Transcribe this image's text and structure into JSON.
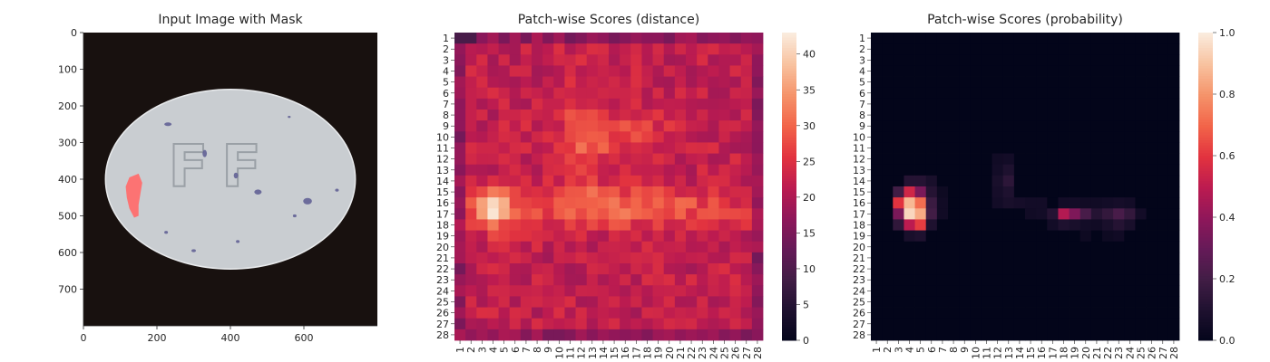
{
  "chart_data": [
    {
      "type": "image",
      "title": "Input Image with Mask",
      "xlim": [
        0,
        800
      ],
      "ylim": [
        800,
        0
      ],
      "x_ticks": [
        0,
        200,
        400,
        600
      ],
      "y_ticks": [
        0,
        100,
        200,
        300,
        400,
        500,
        600,
        700
      ],
      "object": {
        "shape": "ellipse",
        "center": [
          400,
          400
        ],
        "radii": [
          340,
          245
        ],
        "marks": [
          {
            "text": "F",
            "x": 285,
            "y": 420
          },
          {
            "text": "F",
            "x": 430,
            "y": 420
          }
        ]
      },
      "mask": {
        "color": "#ff6e6e",
        "polygon": [
          [
            125,
            395
          ],
          [
            150,
            385
          ],
          [
            160,
            410
          ],
          [
            155,
            440
          ],
          [
            150,
            470
          ],
          [
            150,
            500
          ],
          [
            138,
            505
          ],
          [
            125,
            480
          ],
          [
            118,
            450
          ],
          [
            115,
            420
          ]
        ]
      },
      "colors": {
        "background": "#18110f",
        "object": "#c9cdd1",
        "stain": "#5c5a92"
      }
    },
    {
      "type": "heatmap",
      "title": "Patch-wise Scores (distance)",
      "x_labels": [
        "1",
        "2",
        "3",
        "4",
        "5",
        "6",
        "7",
        "8",
        "9",
        "10",
        "11",
        "12",
        "13",
        "14",
        "15",
        "16",
        "17",
        "18",
        "19",
        "20",
        "21",
        "22",
        "23",
        "24",
        "25",
        "26",
        "27",
        "28"
      ],
      "y_labels": [
        "1",
        "2",
        "3",
        "4",
        "5",
        "6",
        "7",
        "8",
        "9",
        "10",
        "11",
        "12",
        "13",
        "14",
        "15",
        "16",
        "17",
        "18",
        "19",
        "20",
        "21",
        "22",
        "23",
        "24",
        "25",
        "26",
        "27",
        "28"
      ],
      "colormap": "rocket",
      "vmin": 0,
      "vmax": 43,
      "colorbar_ticks": [
        0,
        5,
        10,
        15,
        20,
        25,
        30,
        35,
        40
      ],
      "field": {
        "base": 22,
        "border": -8,
        "hotspots": [
          {
            "row": 16.5,
            "col": 4,
            "sr": 1.3,
            "sc": 1.1,
            "amp": 20
          },
          {
            "row": 16.5,
            "col": 16,
            "sr": 1.2,
            "sc": 7,
            "amp": 9
          },
          {
            "row": 11,
            "col": 12.5,
            "sr": 3.5,
            "sc": 1.2,
            "amp": 6
          },
          {
            "row": 9.5,
            "col": 15,
            "sr": 1.5,
            "sc": 4,
            "amp": 5
          }
        ]
      }
    },
    {
      "type": "heatmap",
      "title": "Patch-wise Scores (probability)",
      "x_labels": [
        "1",
        "2",
        "3",
        "4",
        "5",
        "6",
        "7",
        "8",
        "9",
        "10",
        "11",
        "12",
        "13",
        "14",
        "15",
        "16",
        "17",
        "18",
        "19",
        "20",
        "21",
        "22",
        "23",
        "24",
        "25",
        "26",
        "27",
        "28"
      ],
      "y_labels": [
        "1",
        "2",
        "3",
        "4",
        "5",
        "6",
        "7",
        "8",
        "9",
        "10",
        "11",
        "12",
        "13",
        "14",
        "15",
        "16",
        "17",
        "18",
        "19",
        "20",
        "21",
        "22",
        "23",
        "24",
        "25",
        "26",
        "27",
        "28"
      ],
      "colormap": "rocket",
      "vmin": 0.0,
      "vmax": 1.0,
      "colorbar_ticks": [
        0.0,
        0.2,
        0.4,
        0.6,
        0.8,
        1.0
      ],
      "cells": [
        {
          "row": 14,
          "col": 4,
          "v": 0.12
        },
        {
          "row": 14,
          "col": 5,
          "v": 0.12
        },
        {
          "row": 14,
          "col": 6,
          "v": 0.08
        },
        {
          "row": 15,
          "col": 3,
          "v": 0.2
        },
        {
          "row": 15,
          "col": 4,
          "v": 0.55
        },
        {
          "row": 15,
          "col": 5,
          "v": 0.35
        },
        {
          "row": 15,
          "col": 6,
          "v": 0.12
        },
        {
          "row": 16,
          "col": 3,
          "v": 0.6
        },
        {
          "row": 16,
          "col": 4,
          "v": 0.88
        },
        {
          "row": 16,
          "col": 5,
          "v": 0.72
        },
        {
          "row": 16,
          "col": 6,
          "v": 0.18
        },
        {
          "row": 17,
          "col": 3,
          "v": 0.35
        },
        {
          "row": 17,
          "col": 4,
          "v": 0.95
        },
        {
          "row": 17,
          "col": 5,
          "v": 0.85
        },
        {
          "row": 17,
          "col": 6,
          "v": 0.2
        },
        {
          "row": 18,
          "col": 3,
          "v": 0.15
        },
        {
          "row": 18,
          "col": 4,
          "v": 0.5
        },
        {
          "row": 18,
          "col": 5,
          "v": 0.62
        },
        {
          "row": 18,
          "col": 6,
          "v": 0.1
        },
        {
          "row": 19,
          "col": 4,
          "v": 0.08
        },
        {
          "row": 19,
          "col": 5,
          "v": 0.1
        },
        {
          "row": 15,
          "col": 7,
          "v": 0.04
        },
        {
          "row": 16,
          "col": 7,
          "v": 0.05
        },
        {
          "row": 17,
          "col": 7,
          "v": 0.05
        },
        {
          "row": 12,
          "col": 12,
          "v": 0.05
        },
        {
          "row": 12,
          "col": 13,
          "v": 0.06
        },
        {
          "row": 13,
          "col": 12,
          "v": 0.06
        },
        {
          "row": 13,
          "col": 13,
          "v": 0.1
        },
        {
          "row": 14,
          "col": 12,
          "v": 0.08
        },
        {
          "row": 14,
          "col": 13,
          "v": 0.14
        },
        {
          "row": 15,
          "col": 12,
          "v": 0.07
        },
        {
          "row": 15,
          "col": 13,
          "v": 0.1
        },
        {
          "row": 16,
          "col": 12,
          "v": 0.06
        },
        {
          "row": 16,
          "col": 13,
          "v": 0.08
        },
        {
          "row": 16,
          "col": 14,
          "v": 0.07
        },
        {
          "row": 16,
          "col": 15,
          "v": 0.06
        },
        {
          "row": 16,
          "col": 16,
          "v": 0.06
        },
        {
          "row": 17,
          "col": 15,
          "v": 0.05
        },
        {
          "row": 17,
          "col": 16,
          "v": 0.06
        },
        {
          "row": 17,
          "col": 17,
          "v": 0.12
        },
        {
          "row": 17,
          "col": 18,
          "v": 0.48
        },
        {
          "row": 17,
          "col": 19,
          "v": 0.36
        },
        {
          "row": 17,
          "col": 20,
          "v": 0.22
        },
        {
          "row": 17,
          "col": 21,
          "v": 0.12
        },
        {
          "row": 17,
          "col": 22,
          "v": 0.16
        },
        {
          "row": 17,
          "col": 23,
          "v": 0.22
        },
        {
          "row": 17,
          "col": 24,
          "v": 0.16
        },
        {
          "row": 17,
          "col": 25,
          "v": 0.06
        },
        {
          "row": 16,
          "col": 18,
          "v": 0.06
        },
        {
          "row": 16,
          "col": 19,
          "v": 0.06
        },
        {
          "row": 16,
          "col": 20,
          "v": 0.05
        },
        {
          "row": 16,
          "col": 21,
          "v": 0.05
        },
        {
          "row": 16,
          "col": 22,
          "v": 0.06
        },
        {
          "row": 16,
          "col": 23,
          "v": 0.07
        },
        {
          "row": 16,
          "col": 24,
          "v": 0.06
        },
        {
          "row": 18,
          "col": 17,
          "v": 0.06
        },
        {
          "row": 18,
          "col": 18,
          "v": 0.1
        },
        {
          "row": 18,
          "col": 19,
          "v": 0.08
        },
        {
          "row": 18,
          "col": 20,
          "v": 0.06
        },
        {
          "row": 18,
          "col": 21,
          "v": 0.05
        },
        {
          "row": 18,
          "col": 22,
          "v": 0.08
        },
        {
          "row": 18,
          "col": 23,
          "v": 0.12
        },
        {
          "row": 18,
          "col": 24,
          "v": 0.08
        },
        {
          "row": 19,
          "col": 20,
          "v": 0.04
        },
        {
          "row": 19,
          "col": 22,
          "v": 0.04
        },
        {
          "row": 19,
          "col": 23,
          "v": 0.05
        }
      ]
    }
  ]
}
